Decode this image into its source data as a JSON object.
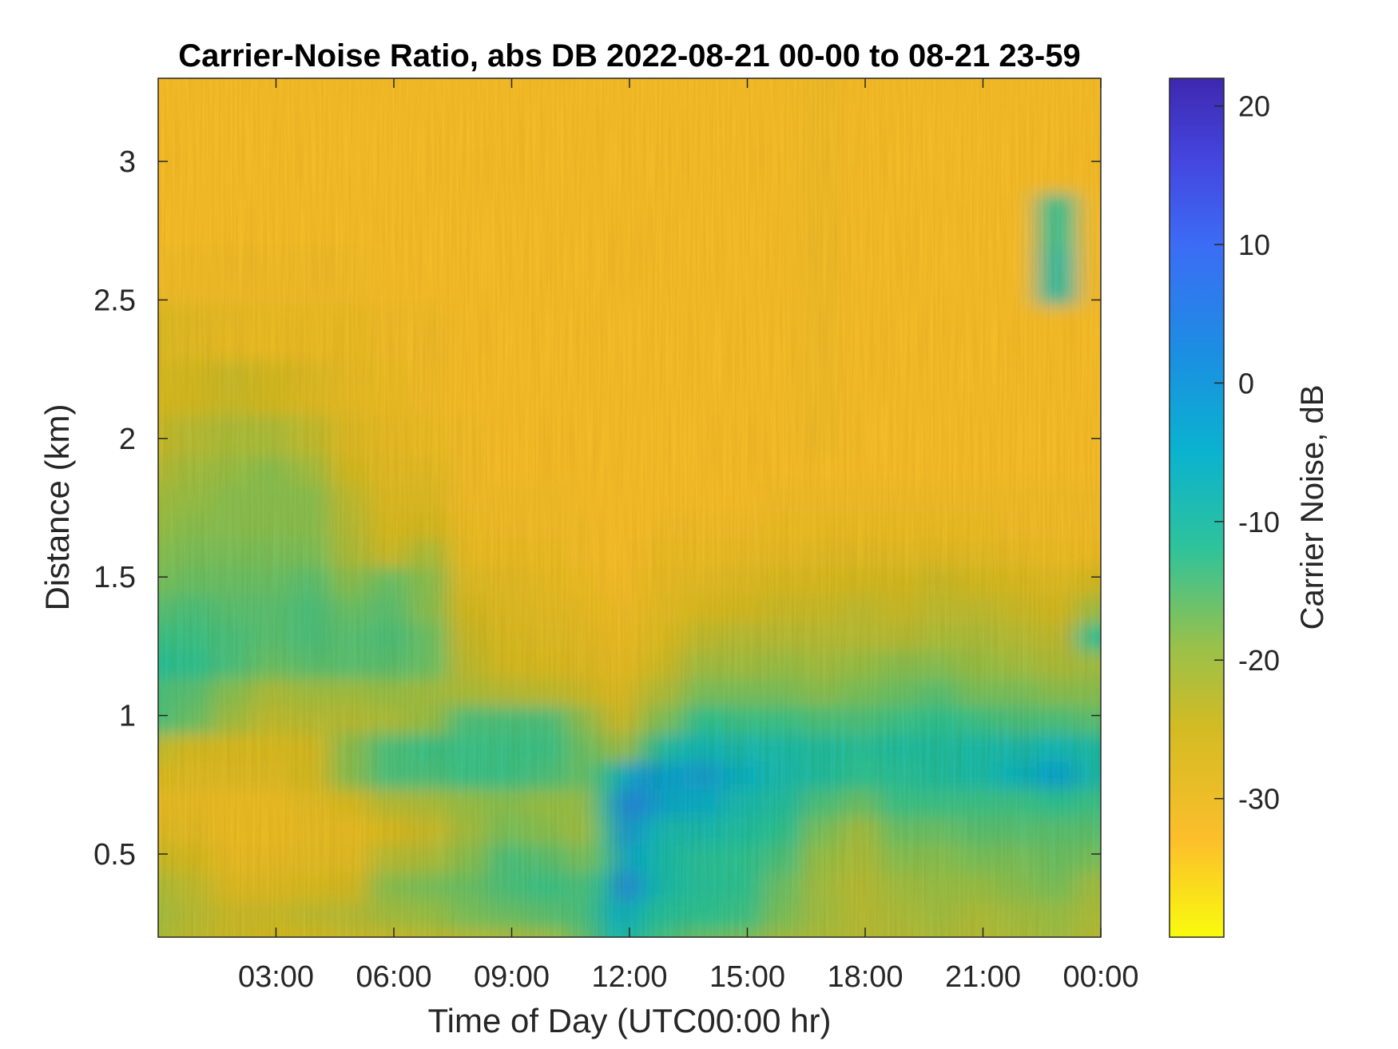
{
  "chart_data": {
    "type": "heatmap",
    "title": "Carrier-Noise Ratio, abs DB 2022-08-21 00-00 to 08-21 23-59",
    "xlabel": "Time of Day (UTC00:00 hr)",
    "ylabel": "Distance (km)",
    "colorbar_label": "Carrier Noise, dB",
    "xlim_hours": [
      0,
      24
    ],
    "ylim": [
      0.2,
      3.3
    ],
    "clim": [
      -40,
      22
    ],
    "x_ticks": [
      {
        "value": 3,
        "label": "03:00"
      },
      {
        "value": 6,
        "label": "06:00"
      },
      {
        "value": 9,
        "label": "09:00"
      },
      {
        "value": 12,
        "label": "12:00"
      },
      {
        "value": 15,
        "label": "15:00"
      },
      {
        "value": 18,
        "label": "18:00"
      },
      {
        "value": 21,
        "label": "21:00"
      },
      {
        "value": 24,
        "label": "00:00"
      }
    ],
    "y_ticks": [
      {
        "value": 0.5,
        "label": "0.5"
      },
      {
        "value": 1,
        "label": "1"
      },
      {
        "value": 1.5,
        "label": "1.5"
      },
      {
        "value": 2,
        "label": "2"
      },
      {
        "value": 2.5,
        "label": "2.5"
      },
      {
        "value": 3,
        "label": "3"
      }
    ],
    "colorbar_ticks": [
      {
        "value": 20,
        "label": "20"
      },
      {
        "value": 10,
        "label": "10"
      },
      {
        "value": 0,
        "label": "0"
      },
      {
        "value": -10,
        "label": "-10"
      },
      {
        "value": -20,
        "label": "-20"
      },
      {
        "value": -30,
        "label": "-30"
      }
    ],
    "colormap": [
      {
        "value": -40,
        "color": "#f9fb0e"
      },
      {
        "value": -33,
        "color": "#fcbf2b"
      },
      {
        "value": -25,
        "color": "#d4bb23"
      },
      {
        "value": -19,
        "color": "#99c14a"
      },
      {
        "value": -12,
        "color": "#2fc39a"
      },
      {
        "value": -5,
        "color": "#0ab3cf"
      },
      {
        "value": 2,
        "color": "#1b8fe2"
      },
      {
        "value": 10,
        "color": "#3c6cf5"
      },
      {
        "value": 16,
        "color": "#4446df"
      },
      {
        "value": 22,
        "color": "#3e28b0"
      }
    ],
    "time_hours": [
      0,
      1,
      2,
      3,
      4,
      5,
      6,
      7,
      8,
      9,
      10,
      11,
      11.5,
      12,
      12.5,
      13,
      14,
      15,
      16,
      17,
      18,
      19,
      20,
      21,
      22,
      23,
      24
    ],
    "distance_km": [
      0.2,
      0.3,
      0.4,
      0.5,
      0.6,
      0.7,
      0.8,
      0.9,
      1.0,
      1.1,
      1.2,
      1.3,
      1.4,
      1.5,
      1.6,
      1.7,
      1.8,
      1.9,
      2.0,
      2.2,
      2.4,
      2.6,
      2.8,
      3.0,
      3.3
    ],
    "cnr_db": [
      [
        -21,
        -23,
        -24,
        -25,
        -25,
        -24,
        -24,
        -23,
        -22,
        -21,
        -20,
        -16,
        -10,
        -8,
        -12,
        -14,
        -16,
        -17,
        -20,
        -21,
        -22,
        -22,
        -21,
        -22,
        -21,
        -20,
        -22
      ],
      [
        -20,
        -22,
        -24,
        -24,
        -23,
        -22,
        -20,
        -19,
        -17,
        -16,
        -15,
        -14,
        -8,
        -4,
        -9,
        -11,
        -12,
        -13,
        -17,
        -20,
        -22,
        -21,
        -20,
        -21,
        -20,
        -19,
        -21
      ],
      [
        -21,
        -23,
        -27,
        -27,
        -26,
        -25,
        -18,
        -17,
        -16,
        -14,
        -13,
        -14,
        -10,
        6,
        -4,
        -9,
        -11,
        -12,
        -16,
        -20,
        -22,
        -20,
        -19,
        -19,
        -18,
        -17,
        -20
      ],
      [
        -24,
        -25,
        -29,
        -29,
        -28,
        -28,
        -22,
        -21,
        -18,
        -14,
        -15,
        -17,
        -14,
        -2,
        -6,
        -9,
        -11,
        -12,
        -14,
        -19,
        -21,
        -18,
        -18,
        -17,
        -17,
        -16,
        -17
      ],
      [
        -27,
        -28,
        -30,
        -30,
        -29,
        -29,
        -26,
        -24,
        -20,
        -17,
        -18,
        -20,
        -13,
        2,
        -4,
        -8,
        -8,
        -10,
        -12,
        -17,
        -20,
        -16,
        -16,
        -15,
        -15,
        -15,
        -15
      ],
      [
        -29,
        -29,
        -30,
        -30,
        -28,
        -26,
        -22,
        -21,
        -19,
        -18,
        -19,
        -19,
        -10,
        5,
        2,
        -3,
        -4,
        -8,
        -10,
        -14,
        -16,
        -13,
        -13,
        -13,
        -13,
        -12,
        -13
      ],
      [
        -26,
        -27,
        -27,
        -27,
        -25,
        -18,
        -14,
        -14,
        -13,
        -13,
        -14,
        -16,
        -12,
        -4,
        0,
        -2,
        -1,
        -5,
        -8,
        -10,
        -12,
        -11,
        -10,
        -9,
        -6,
        -2,
        -8
      ],
      [
        -23,
        -25,
        -26,
        -26,
        -25,
        -18,
        -14,
        -13,
        -13,
        -13,
        -13,
        -16,
        -18,
        -20,
        -14,
        -9,
        -7,
        -8,
        -9,
        -10,
        -11,
        -10,
        -10,
        -9,
        -8,
        -7,
        -9
      ],
      [
        -14,
        -16,
        -20,
        -23,
        -22,
        -22,
        -21,
        -19,
        -14,
        -14,
        -14,
        -18,
        -22,
        -25,
        -19,
        -17,
        -12,
        -13,
        -13,
        -14,
        -14,
        -13,
        -12,
        -13,
        -14,
        -14,
        -15
      ],
      [
        -14,
        -15,
        -18,
        -21,
        -20,
        -20,
        -19,
        -20,
        -21,
        -22,
        -23,
        -24,
        -26,
        -27,
        -23,
        -21,
        -17,
        -17,
        -17,
        -18,
        -17,
        -16,
        -15,
        -17,
        -17,
        -18,
        -18
      ],
      [
        -11,
        -12,
        -14,
        -16,
        -15,
        -15,
        -15,
        -16,
        -23,
        -25,
        -26,
        -27,
        -28,
        -29,
        -26,
        -24,
        -20,
        -20,
        -19,
        -20,
        -19,
        -18,
        -18,
        -19,
        -20,
        -21,
        -20
      ],
      [
        -13,
        -13,
        -14,
        -15,
        -14,
        -15,
        -14,
        -16,
        -24,
        -26,
        -27,
        -28,
        -29,
        -30,
        -28,
        -26,
        -23,
        -22,
        -22,
        -22,
        -22,
        -22,
        -21,
        -21,
        -22,
        -23,
        -12
      ],
      [
        -15,
        -14,
        -15,
        -15,
        -14,
        -16,
        -15,
        -18,
        -25,
        -27,
        -28,
        -29,
        -30,
        -31,
        -29,
        -28,
        -26,
        -25,
        -24,
        -24,
        -23,
        -24,
        -23,
        -23,
        -24,
        -25,
        -20
      ],
      [
        -17,
        -16,
        -16,
        -16,
        -15,
        -18,
        -16,
        -18,
        -27,
        -28,
        -29,
        -30,
        -31,
        -32,
        -30,
        -29,
        -28,
        -27,
        -26,
        -26,
        -25,
        -25,
        -24,
        -25,
        -26,
        -27,
        -25
      ],
      [
        -18,
        -17,
        -17,
        -17,
        -17,
        -21,
        -24,
        -21,
        -29,
        -30,
        -30,
        -31,
        -32,
        -32,
        -31,
        -30,
        -30,
        -29,
        -29,
        -28,
        -28,
        -28,
        -28,
        -28,
        -29,
        -30,
        -30
      ],
      [
        -19,
        -18,
        -18,
        -18,
        -18,
        -22,
        -26,
        -25,
        -30,
        -31,
        -31,
        -31,
        -32,
        -32,
        -32,
        -31,
        -31,
        -31,
        -30,
        -30,
        -30,
        -30,
        -30,
        -30,
        -31,
        -31,
        -31
      ],
      [
        -20,
        -19,
        -18,
        -18,
        -18,
        -23,
        -27,
        -27,
        -31,
        -31,
        -31,
        -32,
        -32,
        -32,
        -32,
        -32,
        -32,
        -32,
        -31,
        -31,
        -31,
        -31,
        -31,
        -31,
        -31,
        -31,
        -31
      ],
      [
        -22,
        -20,
        -19,
        -18,
        -20,
        -25,
        -28,
        -28,
        -31,
        -32,
        -32,
        -32,
        -32,
        -32,
        -32,
        -32,
        -32,
        -32,
        -32,
        -32,
        -32,
        -32,
        -32,
        -32,
        -32,
        -32,
        -32
      ],
      [
        -24,
        -22,
        -21,
        -21,
        -23,
        -27,
        -29,
        -30,
        -31,
        -32,
        -32,
        -32,
        -32,
        -32,
        -32,
        -32,
        -32,
        -32,
        -32,
        -31,
        -32,
        -32,
        -32,
        -32,
        -32,
        -32,
        -32
      ],
      [
        -26,
        -25,
        -24,
        -25,
        -27,
        -29,
        -30,
        -31,
        -32,
        -32,
        -32,
        -32,
        -32,
        -32,
        -32,
        -32,
        -32,
        -32,
        -32,
        -31,
        -32,
        -32,
        -32,
        -32,
        -32,
        -32,
        -32
      ],
      [
        -27,
        -28,
        -29,
        -30,
        -30,
        -30,
        -31,
        -31,
        -32,
        -32,
        -32,
        -32,
        -32,
        -32,
        -32,
        -32,
        -32,
        -32,
        -32,
        -31,
        -32,
        -32,
        -32,
        -32,
        -32,
        -32,
        -32
      ],
      [
        -31,
        -31,
        -31,
        -31,
        -31,
        -31,
        -32,
        -32,
        -32,
        -32,
        -32,
        -32,
        -32,
        -32,
        -32,
        -32,
        -32,
        -32,
        -32,
        -31,
        -32,
        -32,
        -32,
        -32,
        -32,
        -10,
        -32
      ],
      [
        -32,
        -32,
        -32,
        -32,
        -32,
        -32,
        -32,
        -32,
        -32,
        -32,
        -32,
        -32,
        -32,
        -32,
        -32,
        -32,
        -32,
        -32,
        -32,
        -31,
        -32,
        -32,
        -32,
        -32,
        -32,
        -12,
        -32
      ],
      [
        -32,
        -32,
        -32,
        -32,
        -32,
        -32,
        -32,
        -32,
        -32,
        -32,
        -32,
        -32,
        -32,
        -32,
        -32,
        -32,
        -32,
        -32,
        -32,
        -31,
        -32,
        -32,
        -32,
        -32,
        -32,
        -32,
        -32
      ],
      [
        -32,
        -32,
        -32,
        -32,
        -32,
        -32,
        -32,
        -32,
        -32,
        -32,
        -32,
        -32,
        -32,
        -32,
        -32,
        -32,
        -32,
        -32,
        -32,
        -31,
        -32,
        -32,
        -32,
        -32,
        -32,
        -32,
        -32
      ]
    ]
  }
}
